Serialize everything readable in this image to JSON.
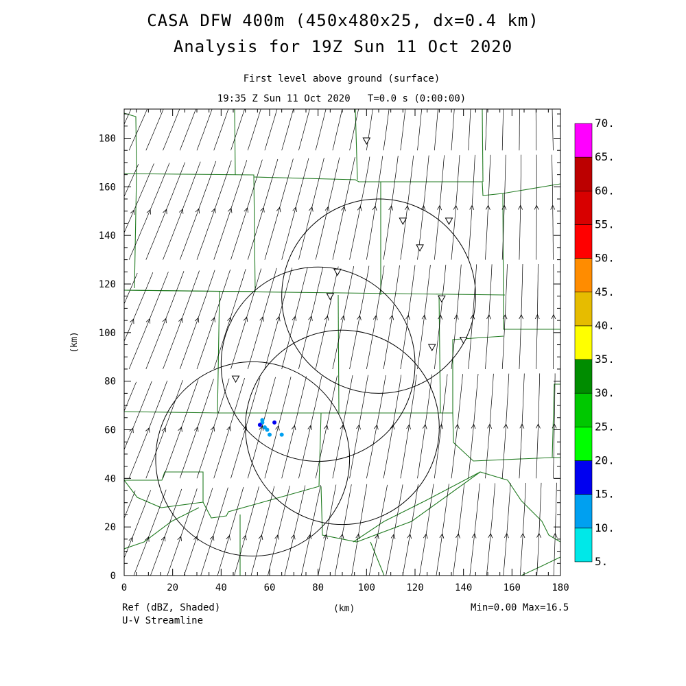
{
  "header": {
    "title_line1": "CASA DFW 400m (450x480x25, dx=0.4 km)",
    "title_line2": "Analysis for 19Z Sun 11 Oct 2020",
    "subtitle_line1": "First level above ground (surface)",
    "subtitle_line2": "19:35 Z Sun 11 Oct 2020   T=0.0 s (0:00:00)"
  },
  "axes": {
    "x_label": "(km)",
    "y_label": "(km)",
    "x_range": [
      0,
      180
    ],
    "y_range": [
      0,
      192
    ],
    "x_ticks": [
      "0",
      "20",
      "40",
      "60",
      "80",
      "100",
      "120",
      "140",
      "160",
      "180"
    ],
    "y_ticks": [
      "0",
      "20",
      "40",
      "60",
      "80",
      "100",
      "120",
      "140",
      "160",
      "180"
    ]
  },
  "colorbar": {
    "labels": [
      "5.",
      "10.",
      "15.",
      "20.",
      "25.",
      "30.",
      "35.",
      "40.",
      "45.",
      "50.",
      "55.",
      "60.",
      "65.",
      "70."
    ],
    "colors": [
      "#00e8e8",
      "#00a0f0",
      "#0000f0",
      "#00ff00",
      "#00c800",
      "#008c00",
      "#ffff00",
      "#e6bc00",
      "#ff8c00",
      "#ff0000",
      "#d80000",
      "#bc0000",
      "#ff00ff"
    ]
  },
  "footer": {
    "left_line1": "Ref (dBZ, Shaded)",
    "left_line2": "U-V Streamline",
    "center": "(km)",
    "right": "Min=0.00 Max=16.5"
  },
  "radar_rings": [
    {
      "center_km": [
        53,
        48
      ],
      "radius_km": 40
    },
    {
      "center_km": [
        80,
        87
      ],
      "radius_km": 40
    },
    {
      "center_km": [
        90,
        61
      ],
      "radius_km": 40
    },
    {
      "center_km": [
        105,
        115
      ],
      "radius_km": 40
    }
  ],
  "stations_km": [
    [
      100,
      179
    ],
    [
      115,
      146
    ],
    [
      134,
      146
    ],
    [
      122,
      135
    ],
    [
      88,
      125
    ],
    [
      85,
      115
    ],
    [
      131,
      114
    ],
    [
      140,
      97
    ],
    [
      127,
      94
    ],
    [
      46,
      81
    ]
  ],
  "echo_blobs_km": [
    [
      57,
      63,
      10
    ],
    [
      58,
      61,
      10
    ],
    [
      56,
      62,
      15
    ],
    [
      59,
      60,
      10
    ],
    [
      62,
      63,
      15
    ],
    [
      65,
      58,
      10
    ],
    [
      60,
      58,
      10
    ],
    [
      57,
      64,
      10
    ]
  ],
  "colors": {
    "streamline": "#000000",
    "county_lines": "#1f7a1f",
    "frame": "#000000"
  }
}
